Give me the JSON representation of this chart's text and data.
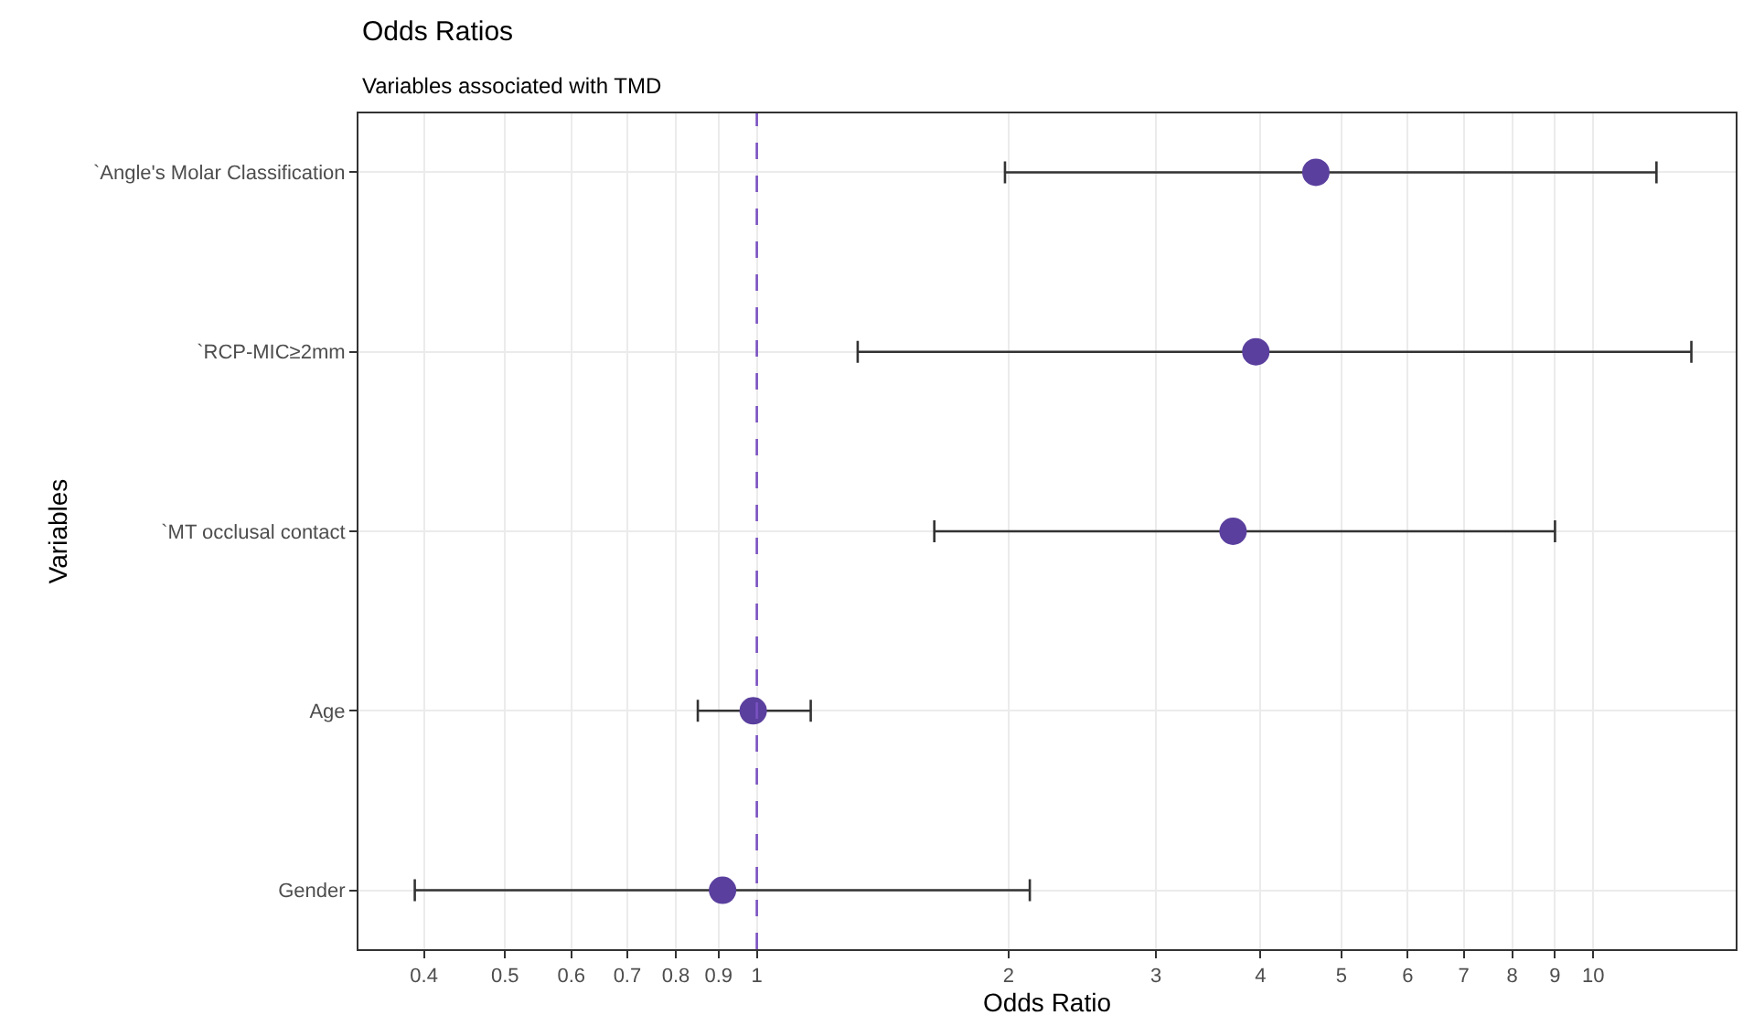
{
  "chart_data": {
    "type": "scatter",
    "orientation": "horizontal",
    "title": "Odds Ratios",
    "subtitle": "Variables associated with TMD",
    "xlabel": "Odds Ratio",
    "ylabel": "Variables",
    "categories": [
      "`Angle's Molar Classification",
      "`RCP-MIC≥2mm",
      "`MT occlusal contact",
      "Age",
      "Gender"
    ],
    "values": [
      4.66,
      3.95,
      3.71,
      0.99,
      0.91
    ],
    "errors": [
      [
        1.98,
        11.9
      ],
      [
        1.32,
        13.1
      ],
      [
        1.63,
        9.0
      ],
      [
        0.85,
        1.16
      ],
      [
        0.39,
        2.12
      ]
    ],
    "color": "#5a3f9e",
    "marker": "circle",
    "log": "x",
    "xlim": [
      0.334,
      14.8
    ],
    "xticks": [
      0.4,
      0.5,
      0.6,
      0.7,
      0.8,
      0.9,
      1,
      2,
      3,
      4,
      5,
      6,
      7,
      8,
      9,
      10
    ],
    "ref_lines": [
      {
        "axis": "x",
        "value": 1,
        "color": "#7b52c1",
        "line_style": "dashed"
      }
    ],
    "grid": true
  }
}
